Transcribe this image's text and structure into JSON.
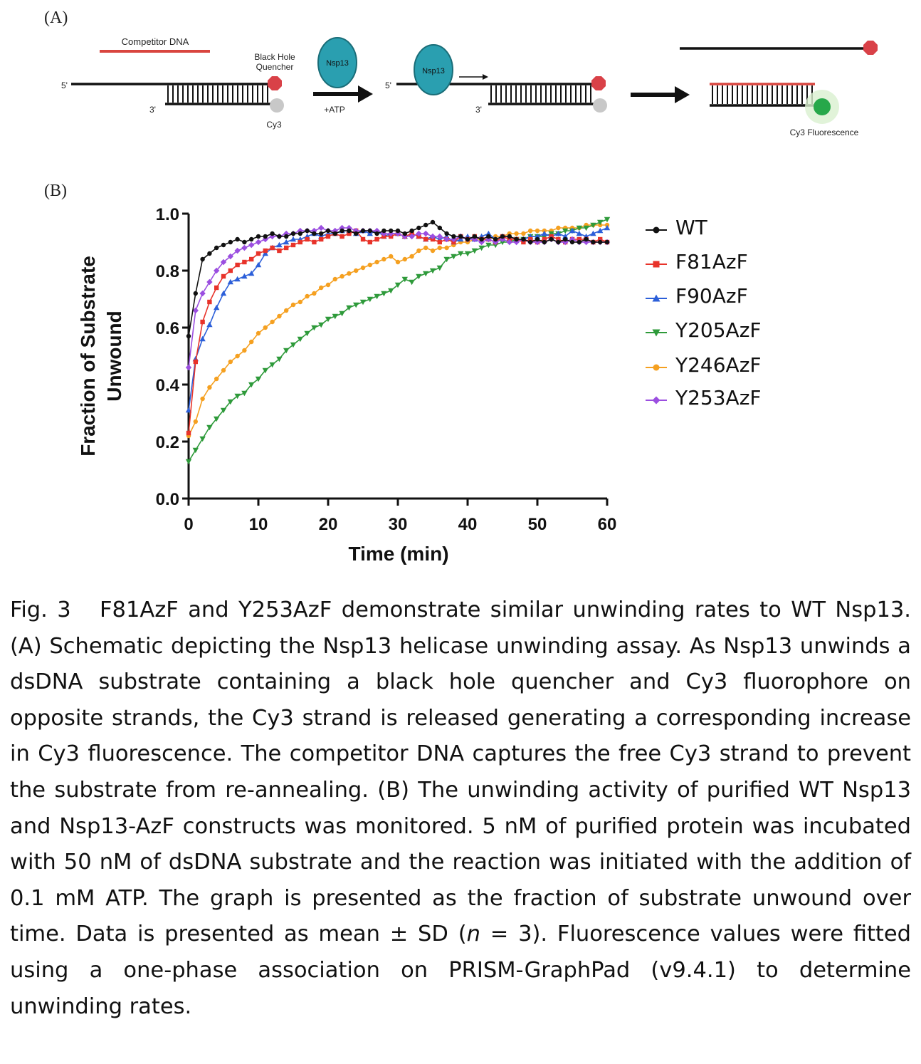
{
  "panel_a": {
    "label": "(A)",
    "competitor_dna": "Competitor DNA",
    "quencher": [
      "Black Hole",
      "Quencher"
    ],
    "five_prime": "5'",
    "three_prime": "3'",
    "cy3": "Cy3",
    "nsp13": "Nsp13",
    "atp": "+ATP",
    "cy3_fluorescence": "Cy3 Fluorescence",
    "colors": {
      "competitor": "#d9453f",
      "quencher": "#d94148",
      "cy3_dark": "#c8c8c8",
      "cy3_bright": "#27a84a",
      "nsp13_fill": "#2a9fb0"
    }
  },
  "panel_b": {
    "label": "(B)"
  },
  "chart_data": {
    "type": "line",
    "xlabel": "Time (min)",
    "ylabel_lines": [
      "Fraction of Substrate",
      "Unwound"
    ],
    "xlim": [
      0,
      60
    ],
    "ylim": [
      0,
      1.0
    ],
    "xticks": [
      "0",
      "10",
      "20",
      "30",
      "40",
      "50",
      "60"
    ],
    "yticks": [
      "0.0",
      "0.2",
      "0.4",
      "0.6",
      "0.8",
      "1.0"
    ],
    "grid": false,
    "legend_position": "right",
    "x": [
      0,
      1,
      2,
      3,
      4,
      5,
      6,
      7,
      8,
      9,
      10,
      11,
      12,
      13,
      14,
      15,
      16,
      17,
      18,
      19,
      20,
      21,
      22,
      23,
      24,
      25,
      26,
      27,
      28,
      29,
      30,
      31,
      32,
      33,
      34,
      35,
      36,
      37,
      38,
      39,
      40,
      41,
      42,
      43,
      44,
      45,
      46,
      47,
      48,
      49,
      50,
      51,
      52,
      53,
      54,
      55,
      56,
      57,
      58,
      59,
      60
    ],
    "series": [
      {
        "name": "WT",
        "color": "#111111",
        "marker": "circle",
        "values": [
          0.57,
          0.72,
          0.84,
          0.86,
          0.88,
          0.89,
          0.9,
          0.91,
          0.9,
          0.91,
          0.92,
          0.92,
          0.93,
          0.92,
          0.92,
          0.93,
          0.93,
          0.94,
          0.93,
          0.93,
          0.94,
          0.93,
          0.94,
          0.94,
          0.93,
          0.94,
          0.94,
          0.93,
          0.94,
          0.94,
          0.94,
          0.93,
          0.94,
          0.95,
          0.96,
          0.97,
          0.95,
          0.93,
          0.92,
          0.92,
          0.91,
          0.92,
          0.91,
          0.92,
          0.91,
          0.92,
          0.92,
          0.91,
          0.91,
          0.9,
          0.91,
          0.9,
          0.91,
          0.9,
          0.91,
          0.9,
          0.9,
          0.91,
          0.9,
          0.9,
          0.9
        ]
      },
      {
        "name": "F81AzF",
        "color": "#e8332a",
        "marker": "square",
        "values": [
          0.23,
          0.48,
          0.62,
          0.69,
          0.74,
          0.78,
          0.8,
          0.82,
          0.83,
          0.84,
          0.86,
          0.87,
          0.88,
          0.87,
          0.88,
          0.89,
          0.9,
          0.91,
          0.9,
          0.91,
          0.92,
          0.93,
          0.92,
          0.93,
          0.94,
          0.91,
          0.9,
          0.91,
          0.92,
          0.92,
          0.93,
          0.92,
          0.93,
          0.92,
          0.91,
          0.91,
          0.9,
          0.91,
          0.9,
          0.92,
          0.91,
          0.92,
          0.91,
          0.91,
          0.9,
          0.92,
          0.91,
          0.91,
          0.9,
          0.91,
          0.9,
          0.91,
          0.92,
          0.91,
          0.9,
          0.91,
          0.91,
          0.91,
          0.9,
          0.91,
          0.9
        ]
      },
      {
        "name": "F90AzF",
        "color": "#2c5fd9",
        "marker": "triangle-up",
        "values": [
          0.31,
          0.49,
          0.56,
          0.61,
          0.67,
          0.72,
          0.76,
          0.77,
          0.78,
          0.79,
          0.82,
          0.86,
          0.88,
          0.89,
          0.9,
          0.91,
          0.91,
          0.92,
          0.93,
          0.92,
          0.93,
          0.93,
          0.94,
          0.94,
          0.93,
          0.94,
          0.93,
          0.94,
          0.92,
          0.93,
          0.93,
          0.92,
          0.93,
          0.92,
          0.91,
          0.92,
          0.91,
          0.92,
          0.9,
          0.91,
          0.92,
          0.91,
          0.92,
          0.93,
          0.91,
          0.92,
          0.92,
          0.91,
          0.91,
          0.92,
          0.92,
          0.93,
          0.92,
          0.93,
          0.92,
          0.94,
          0.93,
          0.92,
          0.93,
          0.94,
          0.95
        ]
      },
      {
        "name": "Y205AzF",
        "color": "#2e9a3a",
        "marker": "triangle-down",
        "values": [
          0.13,
          0.17,
          0.21,
          0.25,
          0.28,
          0.31,
          0.34,
          0.36,
          0.37,
          0.4,
          0.42,
          0.45,
          0.47,
          0.49,
          0.52,
          0.54,
          0.56,
          0.58,
          0.6,
          0.61,
          0.63,
          0.64,
          0.65,
          0.67,
          0.68,
          0.69,
          0.7,
          0.71,
          0.72,
          0.73,
          0.75,
          0.77,
          0.76,
          0.78,
          0.79,
          0.8,
          0.81,
          0.84,
          0.85,
          0.86,
          0.86,
          0.87,
          0.88,
          0.89,
          0.89,
          0.9,
          0.9,
          0.91,
          0.91,
          0.92,
          0.92,
          0.92,
          0.93,
          0.93,
          0.94,
          0.94,
          0.95,
          0.95,
          0.96,
          0.97,
          0.98
        ]
      },
      {
        "name": "Y246AzF",
        "color": "#f5a020",
        "marker": "circle",
        "values": [
          0.22,
          0.27,
          0.35,
          0.39,
          0.42,
          0.45,
          0.48,
          0.5,
          0.52,
          0.55,
          0.58,
          0.6,
          0.62,
          0.64,
          0.66,
          0.68,
          0.69,
          0.71,
          0.72,
          0.74,
          0.75,
          0.77,
          0.78,
          0.79,
          0.8,
          0.81,
          0.82,
          0.83,
          0.84,
          0.85,
          0.83,
          0.84,
          0.85,
          0.87,
          0.88,
          0.87,
          0.88,
          0.88,
          0.89,
          0.9,
          0.9,
          0.91,
          0.91,
          0.91,
          0.92,
          0.92,
          0.93,
          0.93,
          0.93,
          0.94,
          0.94,
          0.94,
          0.94,
          0.95,
          0.95,
          0.95,
          0.95,
          0.96,
          0.96,
          0.96,
          0.96
        ]
      },
      {
        "name": "Y253AzF",
        "color": "#9b4ee0",
        "marker": "diamond",
        "values": [
          0.46,
          0.66,
          0.72,
          0.76,
          0.8,
          0.83,
          0.85,
          0.87,
          0.88,
          0.89,
          0.9,
          0.91,
          0.92,
          0.92,
          0.93,
          0.93,
          0.94,
          0.94,
          0.94,
          0.95,
          0.94,
          0.94,
          0.95,
          0.95,
          0.94,
          0.94,
          0.94,
          0.94,
          0.93,
          0.93,
          0.93,
          0.92,
          0.92,
          0.93,
          0.93,
          0.92,
          0.92,
          0.91,
          0.91,
          0.92,
          0.91,
          0.91,
          0.9,
          0.91,
          0.9,
          0.91,
          0.9,
          0.9,
          0.91,
          0.9,
          0.9,
          0.9,
          0.91,
          0.9,
          0.9,
          0.91,
          0.9,
          0.9,
          0.9,
          0.9,
          0.9
        ]
      }
    ]
  },
  "caption": {
    "fig_num": "Fig. 3",
    "title": "F81AzF and Y253AzF demonstrate similar unwinding rates to WT Nsp13.",
    "body_1": "(A) Schematic depicting the Nsp13 helicase unwinding assay. As Nsp13 unwinds a dsDNA substrate containing a black hole quencher and Cy3 fluorophore on opposite strands, the Cy3 strand is released generating a corresponding increase in Cy3 fluorescence. The competitor DNA captures the free Cy3 strand to prevent the substrate from re-annealing. (B) The unwinding activity of purified WT Nsp13 and Nsp13-AzF constructs was monitored. 5 nM of purified protein was incubated with 50 nM of dsDNA substrate and the reaction was initiated with the addition of 0.1 mM ATP. The graph is presented as the fraction of substrate unwound over time. Data is presented as mean ± SD (",
    "n_italic": "n",
    "body_2": " = 3). Fluorescence values were fitted using a one-phase association on PRISM-GraphPad (v9.4.1) to determine unwinding rates."
  }
}
